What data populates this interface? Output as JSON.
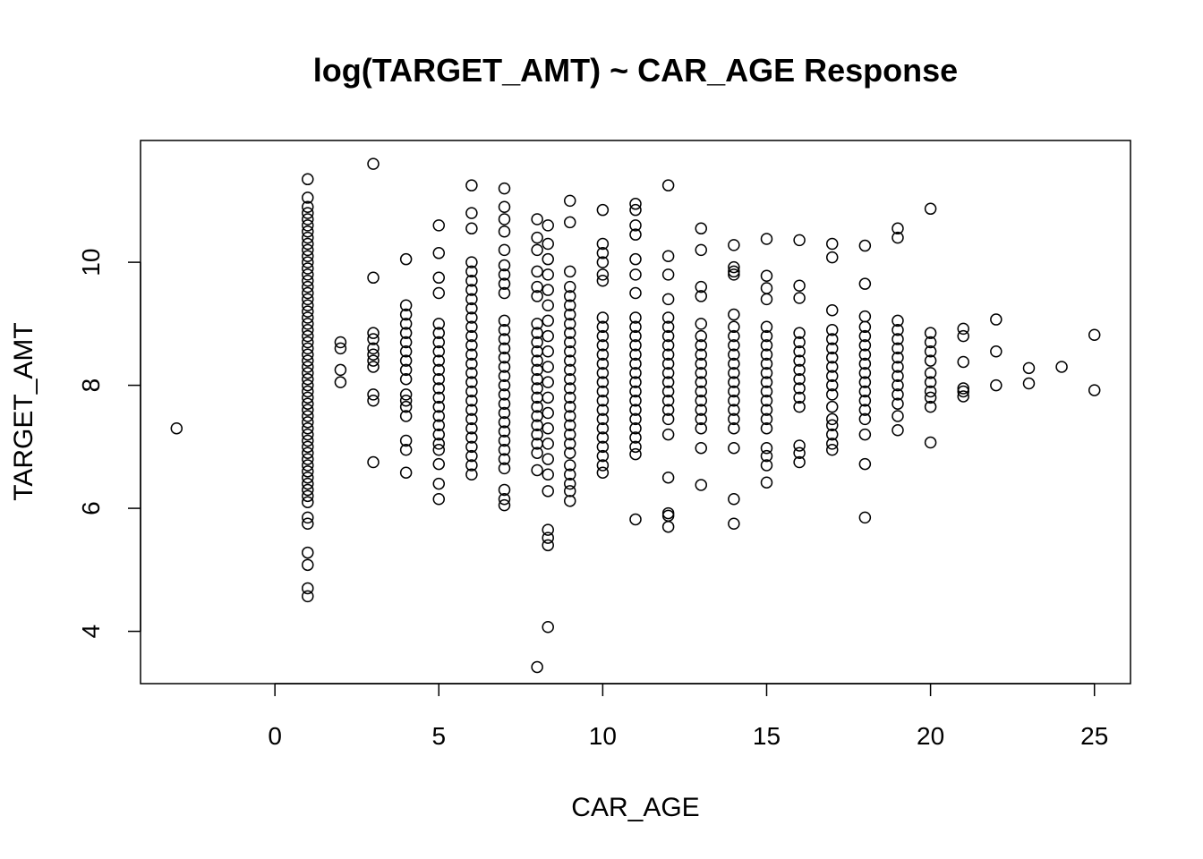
{
  "chart_data": {
    "type": "scatter",
    "title": "log(TARGET_AMT) ~ CAR_AGE Response",
    "xlabel": "CAR_AGE",
    "ylabel": "TARGET_AMT",
    "xlim": [
      -4.1,
      26.1
    ],
    "ylim": [
      3.15,
      11.98
    ],
    "x_ticks": [
      0,
      5,
      10,
      15,
      20,
      25
    ],
    "y_ticks": [
      4,
      6,
      8,
      10
    ],
    "grid": false,
    "legend": "none",
    "marker": "open-circle",
    "points": [
      [
        -3,
        7.3
      ],
      [
        1,
        11.35
      ],
      [
        1,
        11.05
      ],
      [
        1,
        10.9
      ],
      [
        1,
        10.8
      ],
      [
        1,
        10.7
      ],
      [
        1,
        10.6
      ],
      [
        1,
        10.5
      ],
      [
        1,
        10.4
      ],
      [
        1,
        10.3
      ],
      [
        1,
        10.2
      ],
      [
        1,
        10.1
      ],
      [
        1,
        10.0
      ],
      [
        1,
        9.9
      ],
      [
        1,
        9.8
      ],
      [
        1,
        9.7
      ],
      [
        1,
        9.6
      ],
      [
        1,
        9.5
      ],
      [
        1,
        9.4
      ],
      [
        1,
        9.3
      ],
      [
        1,
        9.2
      ],
      [
        1,
        9.1
      ],
      [
        1,
        9.0
      ],
      [
        1,
        8.9
      ],
      [
        1,
        8.8
      ],
      [
        1,
        8.7
      ],
      [
        1,
        8.6
      ],
      [
        1,
        8.5
      ],
      [
        1,
        8.4
      ],
      [
        1,
        8.3
      ],
      [
        1,
        8.2
      ],
      [
        1,
        8.1
      ],
      [
        1,
        8.0
      ],
      [
        1,
        7.9
      ],
      [
        1,
        7.8
      ],
      [
        1,
        7.7
      ],
      [
        1,
        7.6
      ],
      [
        1,
        7.5
      ],
      [
        1,
        7.4
      ],
      [
        1,
        7.3
      ],
      [
        1,
        7.2
      ],
      [
        1,
        7.1
      ],
      [
        1,
        7.0
      ],
      [
        1,
        6.9
      ],
      [
        1,
        6.8
      ],
      [
        1,
        6.7
      ],
      [
        1,
        6.6
      ],
      [
        1,
        6.5
      ],
      [
        1,
        6.4
      ],
      [
        1,
        6.3
      ],
      [
        1,
        6.2
      ],
      [
        1,
        6.1
      ],
      [
        1,
        5.85
      ],
      [
        1,
        5.75
      ],
      [
        1,
        5.28
      ],
      [
        1,
        5.08
      ],
      [
        1,
        4.7
      ],
      [
        1,
        4.57
      ],
      [
        2,
        8.7
      ],
      [
        2,
        8.6
      ],
      [
        2,
        8.25
      ],
      [
        2,
        8.05
      ],
      [
        3,
        11.6
      ],
      [
        3,
        9.75
      ],
      [
        3,
        8.85
      ],
      [
        3,
        8.75
      ],
      [
        3,
        8.6
      ],
      [
        3,
        8.5
      ],
      [
        3,
        8.4
      ],
      [
        3,
        8.3
      ],
      [
        3,
        7.85
      ],
      [
        3,
        7.75
      ],
      [
        3,
        6.75
      ],
      [
        4,
        10.05
      ],
      [
        4,
        9.3
      ],
      [
        4,
        9.15
      ],
      [
        4,
        9.0
      ],
      [
        4,
        8.85
      ],
      [
        4,
        8.7
      ],
      [
        4,
        8.55
      ],
      [
        4,
        8.4
      ],
      [
        4,
        8.25
      ],
      [
        4,
        8.1
      ],
      [
        4,
        7.85
      ],
      [
        4,
        7.75
      ],
      [
        4,
        7.65
      ],
      [
        4,
        7.5
      ],
      [
        4,
        7.1
      ],
      [
        4,
        6.95
      ],
      [
        4,
        6.58
      ],
      [
        5,
        10.6
      ],
      [
        5,
        10.15
      ],
      [
        5,
        9.75
      ],
      [
        5,
        9.5
      ],
      [
        5,
        9.0
      ],
      [
        5,
        8.85
      ],
      [
        5,
        8.7
      ],
      [
        5,
        8.55
      ],
      [
        5,
        8.4
      ],
      [
        5,
        8.25
      ],
      [
        5,
        8.1
      ],
      [
        5,
        7.95
      ],
      [
        5,
        7.8
      ],
      [
        5,
        7.65
      ],
      [
        5,
        7.5
      ],
      [
        5,
        7.35
      ],
      [
        5,
        7.2
      ],
      [
        5,
        7.05
      ],
      [
        5,
        6.95
      ],
      [
        5,
        6.72
      ],
      [
        5,
        6.4
      ],
      [
        5,
        6.15
      ],
      [
        6,
        11.25
      ],
      [
        6,
        10.8
      ],
      [
        6,
        10.55
      ],
      [
        6,
        10.0
      ],
      [
        6,
        9.85
      ],
      [
        6,
        9.7
      ],
      [
        6,
        9.55
      ],
      [
        6,
        9.4
      ],
      [
        6,
        9.25
      ],
      [
        6,
        9.1
      ],
      [
        6,
        8.95
      ],
      [
        6,
        8.8
      ],
      [
        6,
        8.65
      ],
      [
        6,
        8.5
      ],
      [
        6,
        8.35
      ],
      [
        6,
        8.2
      ],
      [
        6,
        8.05
      ],
      [
        6,
        7.9
      ],
      [
        6,
        7.75
      ],
      [
        6,
        7.6
      ],
      [
        6,
        7.45
      ],
      [
        6,
        7.3
      ],
      [
        6,
        7.15
      ],
      [
        6,
        7.0
      ],
      [
        6,
        6.85
      ],
      [
        6,
        6.7
      ],
      [
        6,
        6.55
      ],
      [
        7,
        11.2
      ],
      [
        7,
        10.9
      ],
      [
        7,
        10.7
      ],
      [
        7,
        10.5
      ],
      [
        7,
        10.2
      ],
      [
        7,
        9.95
      ],
      [
        7,
        9.8
      ],
      [
        7,
        9.65
      ],
      [
        7,
        9.5
      ],
      [
        7,
        9.05
      ],
      [
        7,
        8.9
      ],
      [
        7,
        8.75
      ],
      [
        7,
        8.6
      ],
      [
        7,
        8.45
      ],
      [
        7,
        8.3
      ],
      [
        7,
        8.15
      ],
      [
        7,
        8.0
      ],
      [
        7,
        7.85
      ],
      [
        7,
        7.7
      ],
      [
        7,
        7.55
      ],
      [
        7,
        7.4
      ],
      [
        7,
        7.25
      ],
      [
        7,
        7.1
      ],
      [
        7,
        6.95
      ],
      [
        7,
        6.8
      ],
      [
        7,
        6.65
      ],
      [
        7,
        6.3
      ],
      [
        7,
        6.15
      ],
      [
        7,
        6.05
      ],
      [
        8,
        10.7
      ],
      [
        8,
        10.4
      ],
      [
        8,
        10.2
      ],
      [
        8,
        9.85
      ],
      [
        8,
        9.6
      ],
      [
        8,
        9.45
      ],
      [
        8,
        9.0
      ],
      [
        8,
        8.85
      ],
      [
        8,
        8.7
      ],
      [
        8,
        8.55
      ],
      [
        8,
        8.4
      ],
      [
        8,
        8.25
      ],
      [
        8,
        8.1
      ],
      [
        8,
        7.95
      ],
      [
        8,
        7.8
      ],
      [
        8,
        7.65
      ],
      [
        8,
        7.5
      ],
      [
        8,
        7.35
      ],
      [
        8,
        7.2
      ],
      [
        8,
        7.05
      ],
      [
        8,
        6.9
      ],
      [
        8,
        6.62
      ],
      [
        8,
        3.42
      ],
      [
        8.33,
        10.6
      ],
      [
        8.33,
        10.3
      ],
      [
        8.33,
        10.05
      ],
      [
        8.33,
        9.8
      ],
      [
        8.33,
        9.55
      ],
      [
        8.33,
        9.3
      ],
      [
        8.33,
        9.05
      ],
      [
        8.33,
        8.8
      ],
      [
        8.33,
        8.55
      ],
      [
        8.33,
        8.3
      ],
      [
        8.33,
        8.05
      ],
      [
        8.33,
        7.8
      ],
      [
        8.33,
        7.55
      ],
      [
        8.33,
        7.3
      ],
      [
        8.33,
        7.05
      ],
      [
        8.33,
        6.8
      ],
      [
        8.33,
        6.55
      ],
      [
        8.33,
        6.28
      ],
      [
        8.33,
        5.65
      ],
      [
        8.33,
        5.52
      ],
      [
        8.33,
        5.4
      ],
      [
        8.33,
        4.07
      ],
      [
        9,
        11.0
      ],
      [
        9,
        10.65
      ],
      [
        9,
        9.85
      ],
      [
        9,
        9.6
      ],
      [
        9,
        9.45
      ],
      [
        9,
        9.3
      ],
      [
        9,
        9.15
      ],
      [
        9,
        9.0
      ],
      [
        9,
        8.85
      ],
      [
        9,
        8.7
      ],
      [
        9,
        8.55
      ],
      [
        9,
        8.4
      ],
      [
        9,
        8.25
      ],
      [
        9,
        8.1
      ],
      [
        9,
        7.95
      ],
      [
        9,
        7.8
      ],
      [
        9,
        7.65
      ],
      [
        9,
        7.5
      ],
      [
        9,
        7.35
      ],
      [
        9,
        7.2
      ],
      [
        9,
        7.05
      ],
      [
        9,
        6.9
      ],
      [
        9,
        6.7
      ],
      [
        9,
        6.55
      ],
      [
        9,
        6.4
      ],
      [
        9,
        6.28
      ],
      [
        9,
        6.12
      ],
      [
        10,
        10.85
      ],
      [
        10,
        10.3
      ],
      [
        10,
        10.15
      ],
      [
        10,
        10.0
      ],
      [
        10,
        9.8
      ],
      [
        10,
        9.7
      ],
      [
        10,
        9.1
      ],
      [
        10,
        8.95
      ],
      [
        10,
        8.8
      ],
      [
        10,
        8.65
      ],
      [
        10,
        8.5
      ],
      [
        10,
        8.35
      ],
      [
        10,
        8.2
      ],
      [
        10,
        8.05
      ],
      [
        10,
        7.9
      ],
      [
        10,
        7.75
      ],
      [
        10,
        7.6
      ],
      [
        10,
        7.45
      ],
      [
        10,
        7.3
      ],
      [
        10,
        7.15
      ],
      [
        10,
        7.0
      ],
      [
        10,
        6.85
      ],
      [
        10,
        6.7
      ],
      [
        10,
        6.58
      ],
      [
        11,
        10.95
      ],
      [
        11,
        10.85
      ],
      [
        11,
        10.6
      ],
      [
        11,
        10.45
      ],
      [
        11,
        10.05
      ],
      [
        11,
        9.8
      ],
      [
        11,
        9.5
      ],
      [
        11,
        9.1
      ],
      [
        11,
        8.95
      ],
      [
        11,
        8.8
      ],
      [
        11,
        8.65
      ],
      [
        11,
        8.5
      ],
      [
        11,
        8.35
      ],
      [
        11,
        8.2
      ],
      [
        11,
        8.05
      ],
      [
        11,
        7.9
      ],
      [
        11,
        7.75
      ],
      [
        11,
        7.6
      ],
      [
        11,
        7.45
      ],
      [
        11,
        7.3
      ],
      [
        11,
        7.15
      ],
      [
        11,
        7.0
      ],
      [
        11,
        6.88
      ],
      [
        11,
        5.82
      ],
      [
        12,
        11.25
      ],
      [
        12,
        10.1
      ],
      [
        12,
        9.8
      ],
      [
        12,
        9.4
      ],
      [
        12,
        9.1
      ],
      [
        12,
        8.95
      ],
      [
        12,
        8.8
      ],
      [
        12,
        8.65
      ],
      [
        12,
        8.5
      ],
      [
        12,
        8.35
      ],
      [
        12,
        8.2
      ],
      [
        12,
        8.05
      ],
      [
        12,
        7.9
      ],
      [
        12,
        7.75
      ],
      [
        12,
        7.6
      ],
      [
        12,
        7.45
      ],
      [
        12,
        7.2
      ],
      [
        12,
        6.5
      ],
      [
        12,
        5.92
      ],
      [
        12,
        5.88
      ],
      [
        12,
        5.7
      ],
      [
        13,
        10.55
      ],
      [
        13,
        10.2
      ],
      [
        13,
        9.6
      ],
      [
        13,
        9.45
      ],
      [
        13,
        9.0
      ],
      [
        13,
        8.8
      ],
      [
        13,
        8.65
      ],
      [
        13,
        8.5
      ],
      [
        13,
        8.35
      ],
      [
        13,
        8.2
      ],
      [
        13,
        8.05
      ],
      [
        13,
        7.9
      ],
      [
        13,
        7.75
      ],
      [
        13,
        7.6
      ],
      [
        13,
        7.45
      ],
      [
        13,
        7.3
      ],
      [
        13,
        6.98
      ],
      [
        13,
        6.38
      ],
      [
        14,
        10.28
      ],
      [
        14,
        9.92
      ],
      [
        14,
        9.85
      ],
      [
        14,
        9.8
      ],
      [
        14,
        9.15
      ],
      [
        14,
        8.95
      ],
      [
        14,
        8.8
      ],
      [
        14,
        8.65
      ],
      [
        14,
        8.5
      ],
      [
        14,
        8.35
      ],
      [
        14,
        8.2
      ],
      [
        14,
        8.05
      ],
      [
        14,
        7.9
      ],
      [
        14,
        7.75
      ],
      [
        14,
        7.6
      ],
      [
        14,
        7.45
      ],
      [
        14,
        7.3
      ],
      [
        14,
        6.98
      ],
      [
        14,
        6.15
      ],
      [
        14,
        5.75
      ],
      [
        15,
        10.38
      ],
      [
        15,
        9.78
      ],
      [
        15,
        9.58
      ],
      [
        15,
        9.4
      ],
      [
        15,
        8.95
      ],
      [
        15,
        8.8
      ],
      [
        15,
        8.65
      ],
      [
        15,
        8.5
      ],
      [
        15,
        8.35
      ],
      [
        15,
        8.2
      ],
      [
        15,
        8.05
      ],
      [
        15,
        7.9
      ],
      [
        15,
        7.75
      ],
      [
        15,
        7.6
      ],
      [
        15,
        7.45
      ],
      [
        15,
        7.3
      ],
      [
        15,
        6.98
      ],
      [
        15,
        6.85
      ],
      [
        15,
        6.7
      ],
      [
        15,
        6.42
      ],
      [
        16,
        10.36
      ],
      [
        16,
        9.62
      ],
      [
        16,
        9.42
      ],
      [
        16,
        8.85
      ],
      [
        16,
        8.7
      ],
      [
        16,
        8.55
      ],
      [
        16,
        8.4
      ],
      [
        16,
        8.25
      ],
      [
        16,
        8.1
      ],
      [
        16,
        7.95
      ],
      [
        16,
        7.8
      ],
      [
        16,
        7.65
      ],
      [
        16,
        7.02
      ],
      [
        16,
        6.9
      ],
      [
        16,
        6.75
      ],
      [
        17,
        10.3
      ],
      [
        17,
        10.08
      ],
      [
        17,
        9.22
      ],
      [
        17,
        8.9
      ],
      [
        17,
        8.75
      ],
      [
        17,
        8.6
      ],
      [
        17,
        8.45
      ],
      [
        17,
        8.3
      ],
      [
        17,
        8.15
      ],
      [
        17,
        8.0
      ],
      [
        17,
        7.85
      ],
      [
        17,
        7.65
      ],
      [
        17,
        7.45
      ],
      [
        17,
        7.35
      ],
      [
        17,
        7.2
      ],
      [
        17,
        7.05
      ],
      [
        17,
        6.95
      ],
      [
        18,
        10.27
      ],
      [
        18,
        9.65
      ],
      [
        18,
        9.12
      ],
      [
        18,
        8.95
      ],
      [
        18,
        8.8
      ],
      [
        18,
        8.65
      ],
      [
        18,
        8.5
      ],
      [
        18,
        8.35
      ],
      [
        18,
        8.2
      ],
      [
        18,
        8.05
      ],
      [
        18,
        7.9
      ],
      [
        18,
        7.75
      ],
      [
        18,
        7.6
      ],
      [
        18,
        7.45
      ],
      [
        18,
        7.2
      ],
      [
        18,
        6.72
      ],
      [
        18,
        5.85
      ],
      [
        19,
        10.55
      ],
      [
        19,
        10.4
      ],
      [
        19,
        9.05
      ],
      [
        19,
        8.9
      ],
      [
        19,
        8.75
      ],
      [
        19,
        8.6
      ],
      [
        19,
        8.45
      ],
      [
        19,
        8.3
      ],
      [
        19,
        8.15
      ],
      [
        19,
        8.0
      ],
      [
        19,
        7.85
      ],
      [
        19,
        7.7
      ],
      [
        19,
        7.5
      ],
      [
        19,
        7.27
      ],
      [
        20,
        10.87
      ],
      [
        20,
        8.85
      ],
      [
        20,
        8.7
      ],
      [
        20,
        8.55
      ],
      [
        20,
        8.4
      ],
      [
        20,
        8.2
      ],
      [
        20,
        8.05
      ],
      [
        20,
        7.9
      ],
      [
        20,
        7.8
      ],
      [
        20,
        7.65
      ],
      [
        20,
        7.07
      ],
      [
        21,
        8.92
      ],
      [
        21,
        8.8
      ],
      [
        21,
        8.38
      ],
      [
        21,
        7.95
      ],
      [
        21,
        7.9
      ],
      [
        21,
        7.82
      ],
      [
        22,
        9.07
      ],
      [
        22,
        8.55
      ],
      [
        22,
        8.0
      ],
      [
        23,
        8.28
      ],
      [
        23,
        8.03
      ],
      [
        24,
        8.3
      ],
      [
        25,
        8.82
      ],
      [
        25,
        7.92
      ]
    ]
  }
}
